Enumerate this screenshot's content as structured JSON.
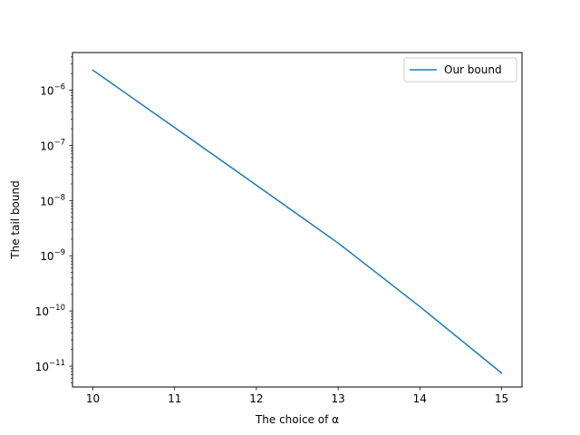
{
  "chart_data": {
    "type": "line",
    "title": "",
    "xlabel": "The choice of α",
    "ylabel": "The tail bound",
    "yscale": "log",
    "xlim": [
      9.75,
      15.25
    ],
    "ylim": [
      4.2e-12,
      4.8e-06
    ],
    "x_ticks": [
      10,
      11,
      12,
      13,
      14,
      15
    ],
    "x_tick_labels": [
      "10",
      "11",
      "12",
      "13",
      "14",
      "15"
    ],
    "y_ticks": [
      {
        "value": 1e-11,
        "base": "10",
        "exp": "−11"
      },
      {
        "value": 1e-10,
        "base": "10",
        "exp": "−10"
      },
      {
        "value": 1e-09,
        "base": "10",
        "exp": "−9"
      },
      {
        "value": 1e-08,
        "base": "10",
        "exp": "−8"
      },
      {
        "value": 1e-07,
        "base": "10",
        "exp": "−7"
      },
      {
        "value": 1e-06,
        "base": "10",
        "exp": "−6"
      }
    ],
    "legend_position": "upper right",
    "series": [
      {
        "name": "Our bound",
        "color": "#1f77b4",
        "x": [
          10,
          11,
          12,
          13,
          14,
          15
        ],
        "y": [
          2.3e-06,
          2.1e-07,
          1.9e-08,
          1.7e-09,
          1.2e-10,
          7.5e-12
        ]
      }
    ]
  }
}
